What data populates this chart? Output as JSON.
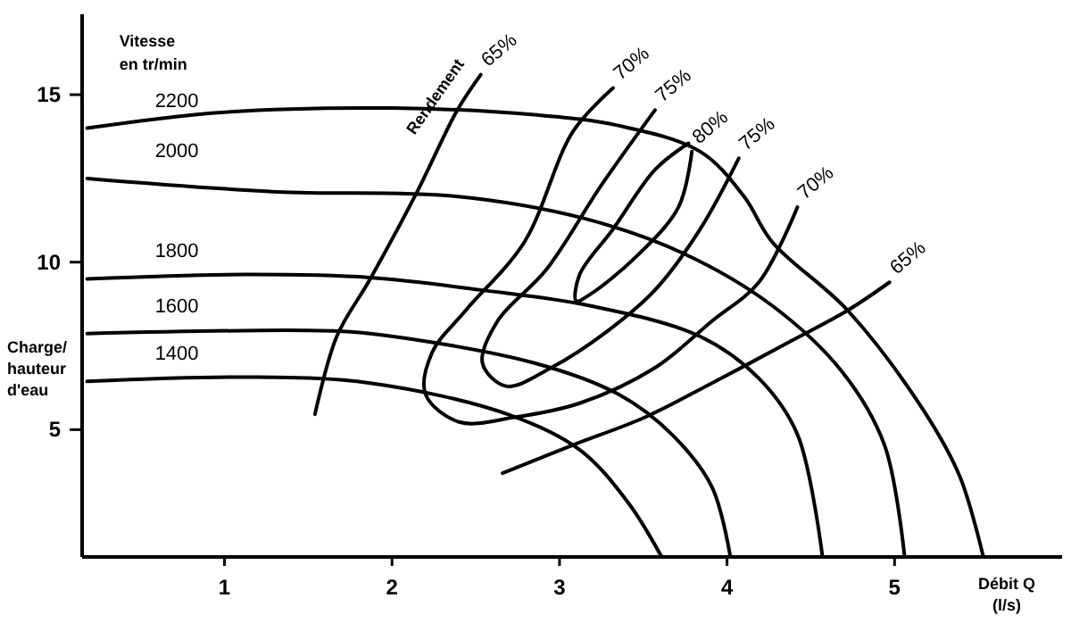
{
  "chart_data": {
    "type": "line",
    "xlabel": "Débit Q (l/s)",
    "ylabel": "Charge/ hauteur d'eau",
    "legend_title": "Vitesse en tr/min",
    "xlim": [
      0.15,
      6
    ],
    "ylim": [
      1.2,
      17.4
    ],
    "xticks": [
      1,
      2,
      3,
      4,
      5
    ],
    "yticks": [
      5,
      10,
      15
    ],
    "annotations": [
      {
        "text": "Rendement",
        "x": 2.53,
        "y": 15.6
      }
    ],
    "series": [
      {
        "name": "2200",
        "color": "#000000",
        "x": [
          0.18,
          0.98,
          2.0,
          2.85,
          3.35,
          3.84,
          4.1,
          4.27,
          4.72,
          5.17,
          5.39,
          5.53
        ],
        "values": [
          14.0,
          14.47,
          14.6,
          14.4,
          14.08,
          13.3,
          11.97,
          10.6,
          8.56,
          5.6,
          3.6,
          1.2
        ]
      },
      {
        "name": "2000",
        "color": "#000000",
        "x": [
          0.18,
          1.31,
          2.37,
          3.15,
          3.74,
          4.27,
          4.69,
          4.94,
          5.06
        ],
        "values": [
          12.5,
          12.1,
          11.97,
          11.3,
          10.26,
          8.7,
          6.71,
          4.54,
          1.2
        ]
      },
      {
        "name": "1800",
        "color": "#000000",
        "x": [
          0.18,
          1.12,
          1.87,
          2.53,
          3.18,
          3.84,
          4.19,
          4.42,
          4.57
        ],
        "values": [
          9.5,
          9.63,
          9.54,
          9.17,
          8.7,
          7.78,
          6.53,
          4.86,
          1.2
        ]
      },
      {
        "name": "1600",
        "color": "#000000",
        "x": [
          0.18,
          1.5,
          1.87,
          2.85,
          3.35,
          3.67,
          3.91,
          4.02
        ],
        "values": [
          7.87,
          7.96,
          7.87,
          6.99,
          6.06,
          4.86,
          3.29,
          1.2
        ]
      },
      {
        "name": "1400",
        "color": "#000000",
        "x": [
          0.18,
          1.12,
          1.87,
          2.69,
          3.12,
          3.41,
          3.61
        ],
        "values": [
          6.44,
          6.57,
          6.39,
          5.46,
          4.4,
          2.82,
          1.2
        ]
      },
      {
        "name": "65%",
        "color": "#000000",
        "x": [
          1.54,
          1.67,
          1.87,
          2.15,
          2.39,
          2.53
        ],
        "values": [
          5.46,
          7.78,
          9.5,
          12.1,
          14.54,
          15.6
        ]
      },
      {
        "name": "70%",
        "color": "#000000",
        "x": [
          3.32,
          3.08,
          2.79,
          2.44,
          2.24,
          2.2,
          2.4,
          2.73,
          3.12,
          3.57,
          3.91,
          4.19,
          4.42
        ],
        "values": [
          15.2,
          13.9,
          10.6,
          8.56,
          7.31,
          6.06,
          5.23,
          5.37,
          5.79,
          6.85,
          8.24,
          9.4,
          11.64
        ]
      },
      {
        "name": "75%",
        "color": "#000000",
        "x": [
          3.57,
          3.25,
          2.92,
          2.63,
          2.54,
          2.68,
          2.95,
          3.28,
          3.57,
          3.84,
          4.07
        ],
        "values": [
          14.54,
          12.3,
          9.77,
          8.24,
          6.99,
          6.3,
          6.85,
          7.92,
          9.17,
          10.99,
          13.1
        ]
      },
      {
        "name": "80%",
        "color": "#000000",
        "x": [
          3.77,
          3.57,
          3.32,
          3.12,
          3.1,
          3.18,
          3.45,
          3.71,
          3.79
        ],
        "values": [
          13.55,
          12.76,
          10.99,
          9.63,
          8.84,
          9.03,
          10.13,
          11.64,
          13.3
        ]
      },
      {
        "name": "65%",
        "color": "#000000",
        "x": [
          2.66,
          3.08,
          3.51,
          3.91,
          4.38,
          4.72,
          4.97
        ],
        "values": [
          3.7,
          4.54,
          5.37,
          6.39,
          7.64,
          8.56,
          9.4
        ]
      }
    ]
  }
}
